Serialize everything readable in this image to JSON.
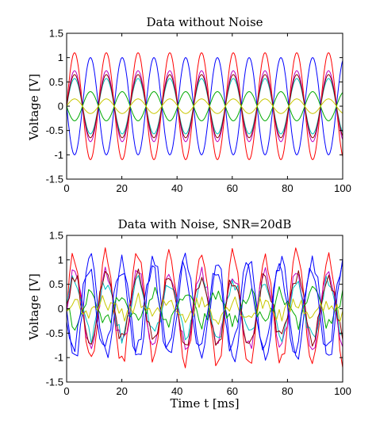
{
  "chart_data": [
    {
      "type": "line",
      "title": "Data without Noise",
      "ylabel": "Voltage [V]",
      "xlabel": "",
      "xlim": [
        0,
        100
      ],
      "ylim": [
        -1.5,
        1.5
      ],
      "xticks": [
        0,
        20,
        40,
        60,
        80,
        100
      ],
      "yticks": [
        -1.5,
        -1,
        -0.5,
        0,
        0.5,
        1,
        1.5
      ],
      "grid": false,
      "noise": false,
      "period_ms": 11.5,
      "series": [
        {
          "color": "#ff0000",
          "amplitude": 1.1,
          "phase_deg": 0
        },
        {
          "color": "#0000ff",
          "amplitude": 1.0,
          "phase_deg": 180
        },
        {
          "color": "#bf00bf",
          "amplitude": 0.73,
          "phase_deg": 0
        },
        {
          "color": "#00bfbf",
          "amplitude": 0.57,
          "phase_deg": 0
        },
        {
          "color": "#8b0000",
          "amplitude": 0.65,
          "phase_deg": 0
        },
        {
          "color": "#00aa00",
          "amplitude": 0.3,
          "phase_deg": 180
        },
        {
          "color": "#c8c800",
          "amplitude": 0.15,
          "phase_deg": 0
        }
      ]
    },
    {
      "type": "line",
      "title": "Data with Noise, SNR=20dB",
      "ylabel": "Voltage [V]",
      "xlabel": "Time t [ms]",
      "xlim": [
        0,
        100
      ],
      "ylim": [
        -1.5,
        1.5
      ],
      "xticks": [
        0,
        20,
        40,
        60,
        80,
        100
      ],
      "yticks": [
        -1.5,
        -1,
        -0.5,
        0,
        0.5,
        1,
        1.5
      ],
      "grid": false,
      "noise": true,
      "period_ms": 11.5,
      "series": [
        {
          "color": "#ff0000",
          "amplitude": 1.1,
          "phase_deg": 0
        },
        {
          "color": "#0000ff",
          "amplitude": 1.0,
          "phase_deg": 180
        },
        {
          "color": "#bf00bf",
          "amplitude": 0.73,
          "phase_deg": 0
        },
        {
          "color": "#00bfbf",
          "amplitude": 0.57,
          "phase_deg": 0
        },
        {
          "color": "#8b0000",
          "amplitude": 0.65,
          "phase_deg": 0
        },
        {
          "color": "#00aa00",
          "amplitude": 0.3,
          "phase_deg": 180
        },
        {
          "color": "#c8c800",
          "amplitude": 0.15,
          "phase_deg": 0
        },
        {
          "color": "#0000ff",
          "amplitude": 0.85,
          "phase_deg": 200
        }
      ]
    }
  ]
}
